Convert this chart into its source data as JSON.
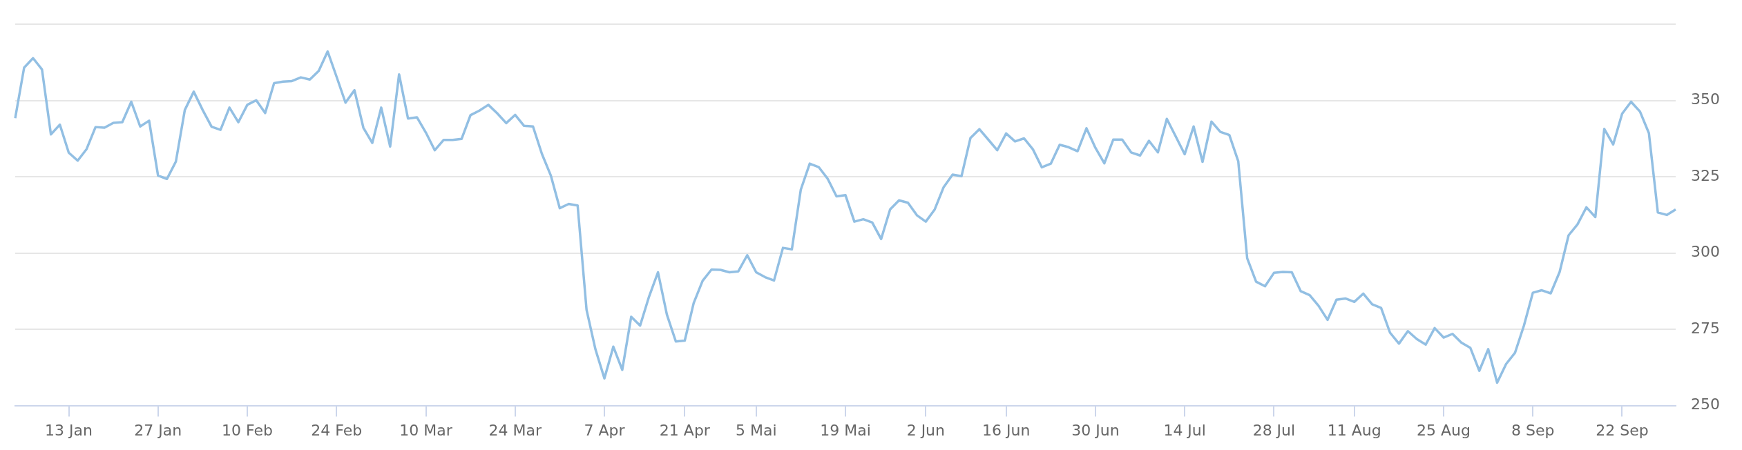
{
  "chart_data": {
    "type": "line",
    "series": [
      {
        "color": "#92bfe3",
        "values": [
          344.2,
          360.8,
          363.9,
          360.2,
          338.9,
          342.1,
          332.9,
          330.3,
          334.1,
          341.3,
          341.1,
          342.7,
          342.9,
          349.6,
          341.5,
          343.4,
          325.4,
          324.3,
          330.0,
          346.9,
          352.9,
          346.9,
          341.4,
          340.4,
          347.7,
          342.9,
          348.6,
          350.1,
          345.9,
          355.7,
          356.2,
          356.4,
          357.6,
          356.9,
          359.7,
          366.1,
          357.8,
          349.3,
          353.4,
          341.1,
          336.1,
          347.7,
          334.9,
          358.6,
          344.1,
          344.5,
          339.5,
          333.7,
          337.1,
          337.1,
          337.4,
          345.2,
          346.7,
          348.6,
          345.8,
          342.6,
          345.3,
          341.7,
          341.5,
          332.5,
          325.4,
          314.7,
          316.1,
          315.6,
          281.4,
          268.4,
          258.9,
          269.3,
          261.7,
          279.1,
          276.2,
          285.7,
          293.7,
          279.8,
          271.0,
          271.3,
          283.6,
          290.9,
          294.6,
          294.5,
          293.7,
          294.0,
          299.3,
          293.7,
          292.1,
          291.0,
          301.7,
          301.2,
          320.8,
          329.3,
          328.2,
          324.4,
          318.6,
          319.0,
          310.3,
          311.1,
          310.0,
          304.6,
          314.3,
          317.3,
          316.5,
          312.4,
          310.3,
          314.3,
          321.6,
          325.7,
          325.2,
          337.7,
          340.6,
          337.2,
          333.7,
          339.2,
          336.6,
          337.6,
          334.0,
          328.1,
          329.3,
          335.5,
          334.7,
          333.4,
          340.9,
          334.5,
          329.4,
          337.2,
          337.2,
          333.0,
          332.0,
          336.8,
          333.0,
          344.0,
          338.2,
          332.4,
          341.5,
          329.9,
          343.1,
          339.7,
          338.7,
          330.1,
          298.3,
          290.6,
          289.1,
          293.5,
          293.8,
          293.7,
          287.5,
          286.2,
          282.7,
          278.1,
          284.7,
          285.1,
          284.0,
          286.7,
          283.2,
          282.0,
          273.9,
          270.3,
          274.4,
          271.8,
          270.0,
          275.4,
          272.3,
          273.5,
          270.6,
          268.9,
          261.4,
          268.5,
          257.5,
          263.6,
          267.3,
          276.2,
          287.0,
          287.8,
          286.8,
          293.8,
          305.8,
          309.4,
          315.0,
          311.8,
          340.7,
          335.6,
          345.7,
          349.6,
          346.4,
          339.3,
          313.3,
          312.5,
          314.3
        ]
      }
    ],
    "categories": [
      null,
      null,
      null,
      null,
      null,
      null,
      "13 Jan",
      null,
      null,
      null,
      null,
      null,
      null,
      null,
      null,
      null,
      "27 Jan",
      null,
      null,
      null,
      null,
      null,
      null,
      null,
      null,
      null,
      "10 Feb",
      null,
      null,
      null,
      null,
      null,
      null,
      null,
      null,
      null,
      "24 Feb",
      null,
      null,
      null,
      null,
      null,
      null,
      null,
      null,
      null,
      "10 Mar",
      null,
      null,
      null,
      null,
      null,
      null,
      null,
      null,
      null,
      "24 Mar",
      null,
      null,
      null,
      null,
      null,
      null,
      null,
      null,
      null,
      "7 Apr",
      null,
      null,
      null,
      null,
      null,
      null,
      null,
      null,
      "21 Apr",
      null,
      null,
      null,
      null,
      null,
      null,
      null,
      "5 Mai",
      null,
      null,
      null,
      null,
      null,
      null,
      null,
      null,
      null,
      "19 Mai",
      null,
      null,
      null,
      null,
      null,
      null,
      null,
      null,
      "2 Jun",
      null,
      null,
      null,
      null,
      null,
      null,
      null,
      null,
      "16 Jun",
      null,
      null,
      null,
      null,
      null,
      null,
      null,
      null,
      null,
      "30 Jun",
      null,
      null,
      null,
      null,
      null,
      null,
      null,
      null,
      null,
      "14 Jul",
      null,
      null,
      null,
      null,
      null,
      null,
      null,
      null,
      null,
      "28 Jul",
      null,
      null,
      null,
      null,
      null,
      null,
      null,
      null,
      "11 Aug",
      null,
      null,
      null,
      null,
      null,
      null,
      null,
      null,
      null,
      "25 Aug",
      null,
      null,
      null,
      null,
      null,
      null,
      null,
      null,
      null,
      "8 Sep",
      null,
      null,
      null,
      null,
      null,
      null,
      null,
      null,
      null,
      "22 Sep",
      null,
      null,
      null,
      null,
      null,
      null
    ],
    "ylim": [
      250,
      375
    ],
    "yticks": [
      250,
      275,
      300,
      325,
      350,
      {
        "value": 375,
        "label": null
      }
    ],
    "grid": "y",
    "legend": false,
    "marker": "none",
    "line_style": "solid"
  }
}
